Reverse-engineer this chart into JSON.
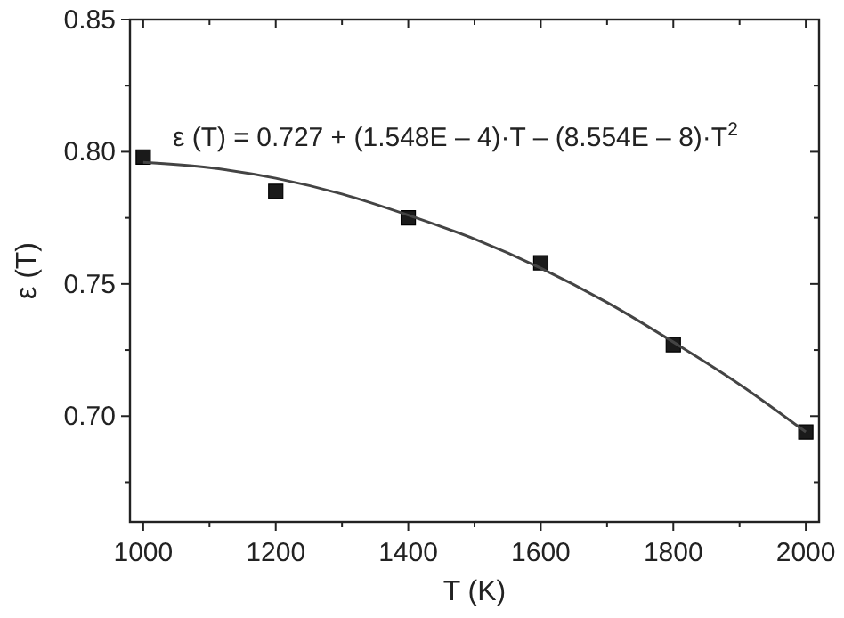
{
  "chart_data": {
    "type": "scatter",
    "xlabel": "T (K)",
    "ylabel": "ε (T)",
    "x": [
      1000,
      1200,
      1400,
      1600,
      1800,
      2000
    ],
    "series": [
      {
        "color": "#1a1a1a",
        "marker": "square",
        "values": [
          0.798,
          0.785,
          0.775,
          0.758,
          0.727,
          0.694
        ]
      },
      {
        "type": "line",
        "color": "#444444",
        "marker": "none",
        "line_style": "solid",
        "x": [
          1000,
          1100,
          1200,
          1300,
          1400,
          1500,
          1600,
          1700,
          1800,
          1900,
          2000
        ],
        "values": [
          0.796,
          0.794,
          0.79,
          0.784,
          0.776,
          0.767,
          0.756,
          0.743,
          0.728,
          0.712,
          0.694
        ]
      }
    ],
    "xlim": [
      980,
      2020
    ],
    "ylim": [
      0.66,
      0.85
    ],
    "xticks": [
      1000,
      {
        "value": 1100,
        "label": null
      },
      1200,
      {
        "value": 1300,
        "label": null
      },
      1400,
      {
        "value": 1500,
        "label": null
      },
      1600,
      {
        "value": 1700,
        "label": null
      },
      1800,
      {
        "value": 1900,
        "label": null
      },
      2000
    ],
    "yticks": [
      {
        "value": 0.675,
        "label": null
      },
      {
        "value": 0.7,
        "label": "0.70"
      },
      {
        "value": 0.725,
        "label": null
      },
      {
        "value": 0.75,
        "label": "0.75"
      },
      {
        "value": 0.775,
        "label": null
      },
      {
        "value": 0.8,
        "label": "0.80"
      },
      {
        "value": 0.825,
        "label": null
      },
      {
        "value": 0.85,
        "label": "0.85"
      }
    ],
    "annotations": [
      "ε (T) = 0.727 + (1.548E – 4)·T – (8.554E – 8)·T$^{2}$"
    ],
    "grid": false
  }
}
